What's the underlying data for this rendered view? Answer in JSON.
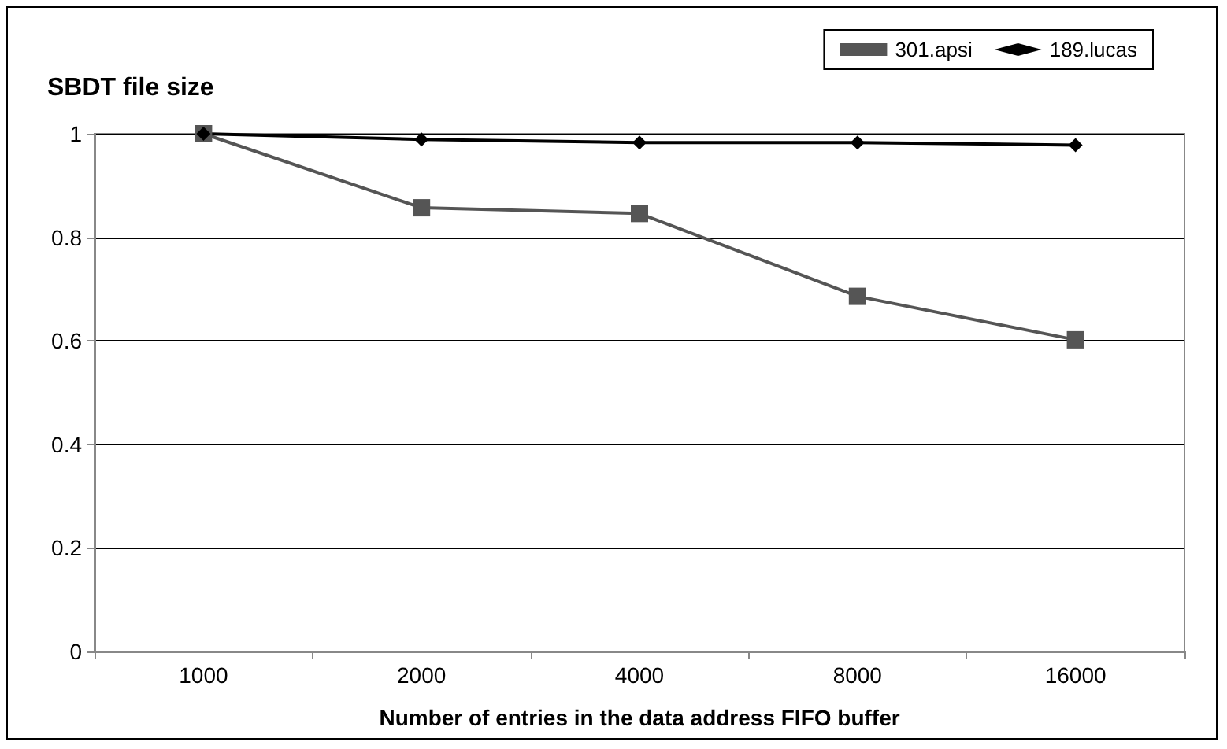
{
  "chart_data": {
    "type": "line",
    "title": "SBDT file size",
    "xlabel": "Number of entries in the data address FIFO buffer",
    "categories": [
      "1000",
      "2000",
      "4000",
      "8000",
      "16000"
    ],
    "series": [
      {
        "name": "301.apsi",
        "color": "#555555",
        "marker": "square",
        "values": [
          1.0,
          0.857,
          0.846,
          0.686,
          0.602
        ]
      },
      {
        "name": "189.lucas",
        "color": "#000000",
        "marker": "diamond",
        "values": [
          1.0,
          0.989,
          0.983,
          0.983,
          0.978
        ]
      }
    ],
    "ylim": [
      0,
      1
    ],
    "yticks": [
      0,
      0.2,
      0.4,
      0.6,
      0.8,
      1
    ],
    "grid": "y",
    "legend": "top right",
    "line_style": "solid"
  }
}
